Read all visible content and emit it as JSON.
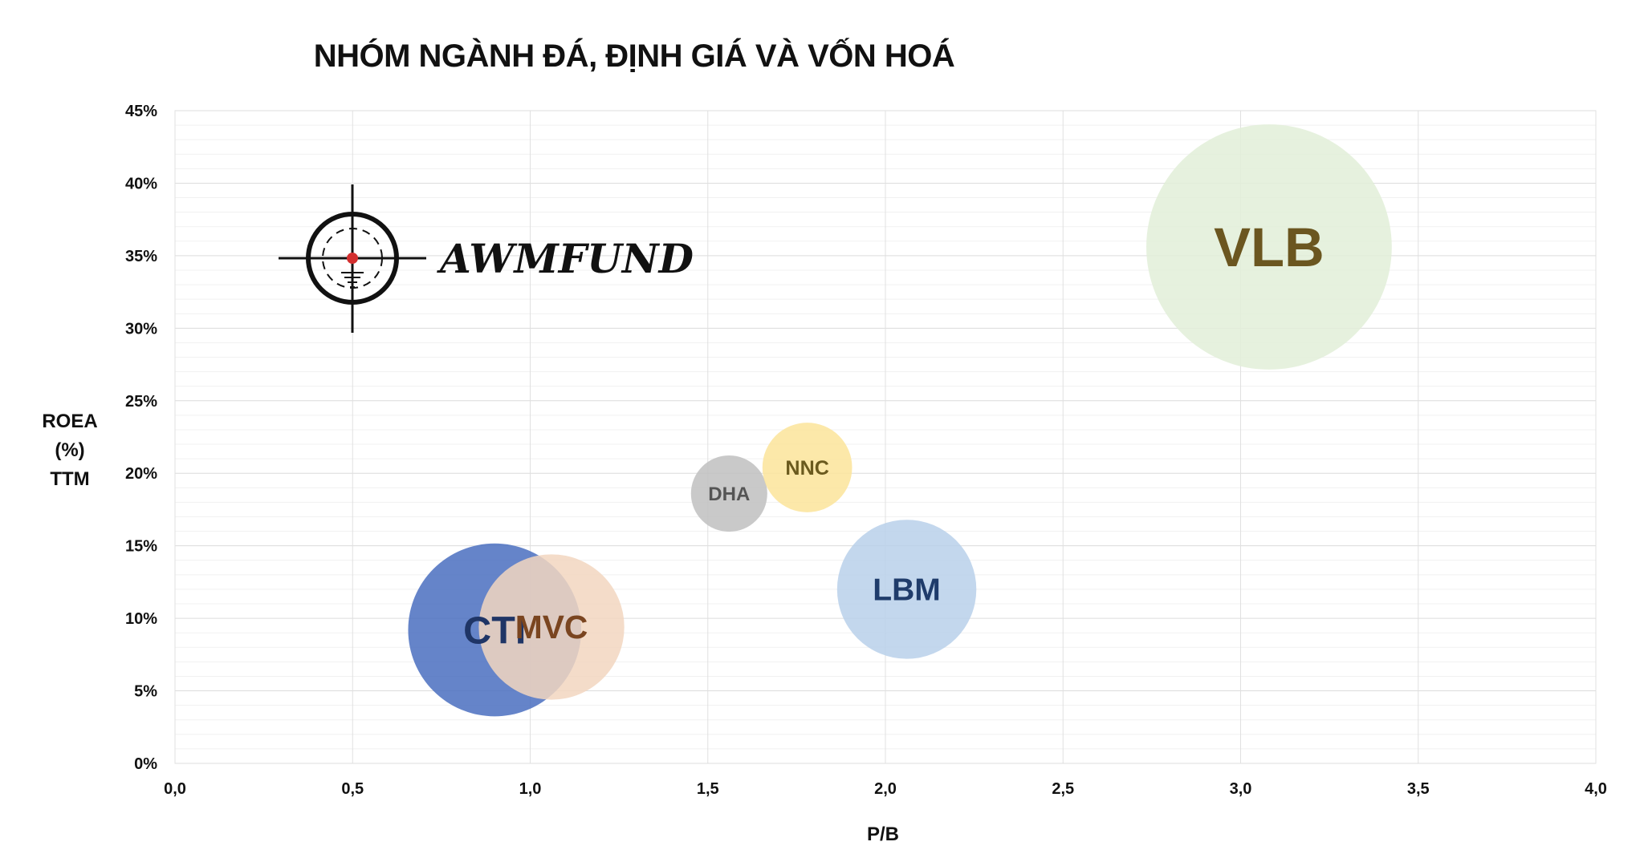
{
  "title": "NHÓM NGÀNH ĐÁ, ĐỊNH GIÁ VÀ VỐN HOÁ",
  "logo": {
    "text": "AWMFUND",
    "icon": "crosshair-icon",
    "dot_color": "#d32f2f"
  },
  "chart_data": {
    "type": "bubble",
    "xlabel": "P/B",
    "ylabel": [
      "ROEA",
      "(%)",
      "TTM"
    ],
    "xlim": [
      0,
      4
    ],
    "ylim": [
      0,
      45
    ],
    "x_ticks": [
      "0,0",
      "0,5",
      "1,0",
      "1,5",
      "2,0",
      "2,5",
      "3,0",
      "3,5",
      "4,0"
    ],
    "y_ticks": [
      "0%",
      "5%",
      "10%",
      "15%",
      "20%",
      "25%",
      "30%",
      "35%",
      "40%",
      "45%"
    ],
    "grid": true,
    "legend": "none",
    "series": [
      {
        "label": "CTI",
        "x": 0.9,
        "y": 9.2,
        "size": 220,
        "color": "#4a6fbf",
        "label_color": "#1f3566"
      },
      {
        "label": "MVC",
        "x": 1.06,
        "y": 9.4,
        "size": 185,
        "color": "#f2d6bf",
        "label_color": "#7a4520"
      },
      {
        "label": "DHA",
        "x": 1.56,
        "y": 18.6,
        "size": 97,
        "color": "#c0c0c0",
        "label_color": "#555555"
      },
      {
        "label": "NNC",
        "x": 1.78,
        "y": 20.4,
        "size": 114,
        "color": "#fbe49a",
        "label_color": "#6b5a1e"
      },
      {
        "label": "LBM",
        "x": 2.06,
        "y": 12.0,
        "size": 177,
        "color": "#b8d0ea",
        "label_color": "#1f3c6b"
      },
      {
        "label": "VLB",
        "x": 3.08,
        "y": 35.6,
        "size": 312,
        "color": "#e2efd8",
        "label_color": "#6b5620"
      }
    ]
  }
}
